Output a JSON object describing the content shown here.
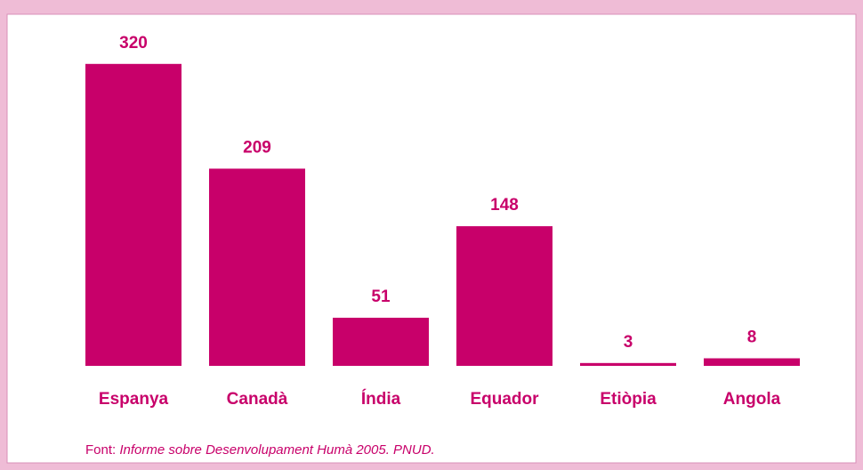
{
  "chart_data": {
    "type": "bar",
    "categories": [
      "Espanya",
      "Canadà",
      "Índia",
      "Equador",
      "Etiòpia",
      "Angola"
    ],
    "values": [
      320,
      209,
      51,
      148,
      3,
      8
    ],
    "color": "#c8006a",
    "source_label": "Font:",
    "source": "Informe sobre Desenvolupament Humà 2005. PNUD."
  }
}
